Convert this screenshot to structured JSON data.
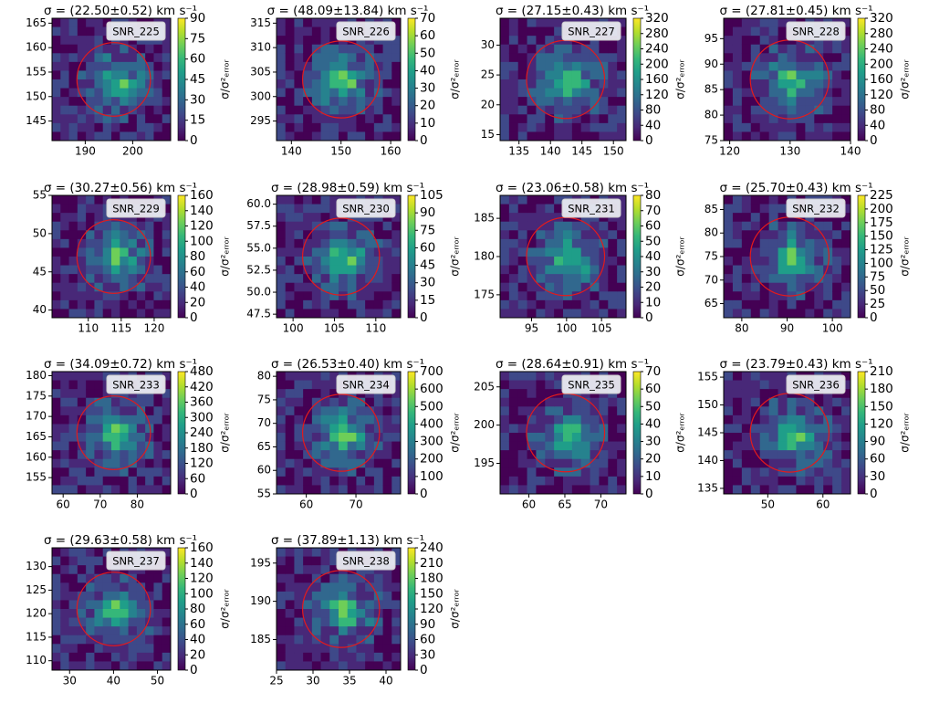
{
  "chart_data": [
    {
      "type": "contour",
      "title": "σ = (22.50±0.52) km s⁻¹",
      "label": "SNR_225",
      "colorbar_label": "σ/σ²ₑᵣᵣₒᵣ",
      "xlim": [
        183,
        208
      ],
      "xticks": [
        190,
        200
      ],
      "ylim": [
        141,
        166
      ],
      "yticks": [
        145,
        150,
        155,
        160,
        165
      ],
      "clim": [
        0,
        90
      ],
      "cticks": [
        0,
        15,
        30,
        45,
        60,
        75,
        90
      ],
      "circle_color": "#e41a1c"
    },
    {
      "type": "contour",
      "title": "σ = (48.09±13.84) km s⁻¹",
      "label": "SNR_226",
      "colorbar_label": "σ/σ²ₑᵣᵣₒᵣ",
      "xlim": [
        137,
        162
      ],
      "xticks": [
        140,
        150,
        160
      ],
      "ylim": [
        291,
        316
      ],
      "yticks": [
        295,
        300,
        305,
        310,
        315
      ],
      "clim": [
        0,
        70
      ],
      "cticks": [
        0,
        10,
        20,
        30,
        40,
        50,
        60,
        70
      ],
      "circle_color": "#e41a1c"
    },
    {
      "type": "contour",
      "title": "σ = (27.15±0.43) km s⁻¹",
      "label": "SNR_227",
      "colorbar_label": "σ/σ²ₑᵣᵣₒᵣ",
      "xlim": [
        132,
        152
      ],
      "xticks": [
        135,
        140,
        145,
        150
      ],
      "ylim": [
        14,
        34.5
      ],
      "yticks": [
        15,
        20,
        25,
        30
      ],
      "clim": [
        0,
        320
      ],
      "cticks": [
        0,
        40,
        80,
        120,
        160,
        200,
        240,
        280,
        320
      ],
      "circle_color": "#e41a1c"
    },
    {
      "type": "contour",
      "title": "σ = (27.81±0.45) km s⁻¹",
      "label": "SNR_228",
      "colorbar_label": "σ/σ²ₑᵣᵣₒᵣ",
      "xlim": [
        119,
        140
      ],
      "xticks": [
        120,
        130,
        140
      ],
      "ylim": [
        75,
        99
      ],
      "yticks": [
        75,
        80,
        85,
        90,
        95
      ],
      "clim": [
        0,
        320
      ],
      "cticks": [
        0,
        40,
        80,
        120,
        160,
        200,
        240,
        280,
        320
      ],
      "circle_color": "#e41a1c"
    },
    {
      "type": "contour",
      "title": "σ = (30.27±0.56) km s⁻¹",
      "label": "SNR_229",
      "colorbar_label": "σ/σ²ₑᵣᵣₒᵣ",
      "xlim": [
        104.5,
        122.5
      ],
      "xticks": [
        110,
        115,
        120
      ],
      "ylim": [
        39,
        55
      ],
      "yticks": [
        40,
        45,
        50,
        55
      ],
      "clim": [
        0,
        160
      ],
      "cticks": [
        0,
        20,
        40,
        60,
        80,
        100,
        120,
        140,
        160
      ],
      "circle_color": "#e41a1c"
    },
    {
      "type": "contour",
      "title": "σ = (28.98±0.59) km s⁻¹",
      "label": "SNR_230",
      "colorbar_label": "σ/σ²ₑᵣᵣₒᵣ",
      "xlim": [
        98,
        113
      ],
      "xticks": [
        100,
        105,
        110
      ],
      "ylim": [
        47.1,
        61
      ],
      "yticks": [
        47.5,
        {
          "value": 50,
          "label": "50.0"
        },
        52.5,
        {
          "value": 55,
          "label": "55.0"
        },
        57.5,
        {
          "value": 60,
          "label": "60.0"
        }
      ],
      "clim": [
        0,
        105
      ],
      "cticks": [
        0,
        15,
        30,
        45,
        60,
        75,
        90,
        105
      ],
      "circle_color": "#e41a1c"
    },
    {
      "type": "contour",
      "title": "σ = (23.06±0.58) km s⁻¹",
      "label": "SNR_231",
      "colorbar_label": "σ/σ²ₑᵣᵣₒᵣ",
      "xlim": [
        90.5,
        108.5
      ],
      "xticks": [
        95,
        100,
        105
      ],
      "ylim": [
        172,
        188
      ],
      "yticks": [
        175,
        180,
        185
      ],
      "clim": [
        0,
        80
      ],
      "cticks": [
        0,
        10,
        20,
        30,
        40,
        50,
        60,
        70,
        80
      ],
      "circle_color": "#e41a1c"
    },
    {
      "type": "contour",
      "title": "σ = (25.70±0.43) km s⁻¹",
      "label": "SNR_232",
      "colorbar_label": "σ/σ²ₑᵣᵣₒᵣ",
      "xlim": [
        76,
        104
      ],
      "xticks": [
        80,
        90,
        100
      ],
      "ylim": [
        62,
        88
      ],
      "yticks": [
        65,
        70,
        75,
        80,
        85
      ],
      "clim": [
        0,
        225
      ],
      "cticks": [
        0,
        25,
        50,
        75,
        100,
        125,
        150,
        175,
        200,
        225
      ],
      "circle_color": "#e41a1c"
    },
    {
      "type": "contour",
      "title": "σ = (34.09±0.72) km s⁻¹",
      "label": "SNR_233",
      "colorbar_label": "σ/σ²ₑᵣᵣₒᵣ",
      "xlim": [
        57,
        89
      ],
      "xticks": [
        60,
        70,
        80
      ],
      "ylim": [
        151,
        181
      ],
      "yticks": [
        155,
        160,
        165,
        170,
        175,
        180
      ],
      "clim": [
        0,
        480
      ],
      "cticks": [
        0,
        60,
        120,
        180,
        240,
        300,
        360,
        420,
        480
      ],
      "circle_color": "#e41a1c"
    },
    {
      "type": "contour",
      "title": "σ = (26.53±0.40) km s⁻¹",
      "label": "SNR_234",
      "colorbar_label": "σ/σ²ₑᵣᵣₒᵣ",
      "xlim": [
        54,
        79
      ],
      "xticks": [
        60,
        70
      ],
      "ylim": [
        55,
        81
      ],
      "yticks": [
        55,
        60,
        65,
        70,
        75,
        80
      ],
      "clim": [
        0,
        700
      ],
      "cticks": [
        0,
        100,
        200,
        300,
        400,
        500,
        600,
        700
      ],
      "circle_color": "#e41a1c"
    },
    {
      "type": "contour",
      "title": "σ = (28.64±0.91) km s⁻¹",
      "label": "SNR_235",
      "colorbar_label": "σ/σ²ₑᵣᵣₒᵣ",
      "xlim": [
        56,
        73.5
      ],
      "xticks": [
        60,
        65,
        70
      ],
      "ylim": [
        191,
        207
      ],
      "yticks": [
        195,
        200,
        205
      ],
      "clim": [
        0,
        70
      ],
      "cticks": [
        0,
        10,
        20,
        30,
        40,
        50,
        60,
        70
      ],
      "circle_color": "#e41a1c"
    },
    {
      "type": "contour",
      "title": "σ = (23.79±0.43) km s⁻¹",
      "label": "SNR_236",
      "colorbar_label": "σ/σ²ₑᵣᵣₒᵣ",
      "xlim": [
        42,
        65
      ],
      "xticks": [
        50,
        60
      ],
      "ylim": [
        134,
        156
      ],
      "yticks": [
        135,
        140,
        145,
        150,
        155
      ],
      "clim": [
        0,
        210
      ],
      "cticks": [
        0,
        30,
        60,
        90,
        120,
        150,
        180,
        210
      ],
      "circle_color": "#e41a1c"
    },
    {
      "type": "contour",
      "title": "σ = (29.63±0.58) km s⁻¹",
      "label": "SNR_237",
      "colorbar_label": "σ/σ²ₑᵣᵣₒᵣ",
      "xlim": [
        26,
        53
      ],
      "xticks": [
        30,
        40,
        50
      ],
      "ylim": [
        108,
        134
      ],
      "yticks": [
        110,
        115,
        120,
        125,
        130
      ],
      "clim": [
        0,
        160
      ],
      "cticks": [
        0,
        20,
        40,
        60,
        80,
        100,
        120,
        140,
        160
      ],
      "circle_color": "#e41a1c"
    },
    {
      "type": "contour",
      "title": "σ = (37.89±1.13) km s⁻¹",
      "label": "SNR_238",
      "colorbar_label": "σ/σ²ₑᵣᵣₒᵣ",
      "xlim": [
        25,
        42
      ],
      "xticks": [
        25,
        30,
        35,
        40
      ],
      "ylim": [
        181,
        197
      ],
      "yticks": [
        185,
        190,
        195
      ],
      "clim": [
        0,
        240
      ],
      "cticks": [
        0,
        30,
        60,
        90,
        120,
        150,
        180,
        210,
        240
      ],
      "circle_color": "#e41a1c"
    }
  ]
}
